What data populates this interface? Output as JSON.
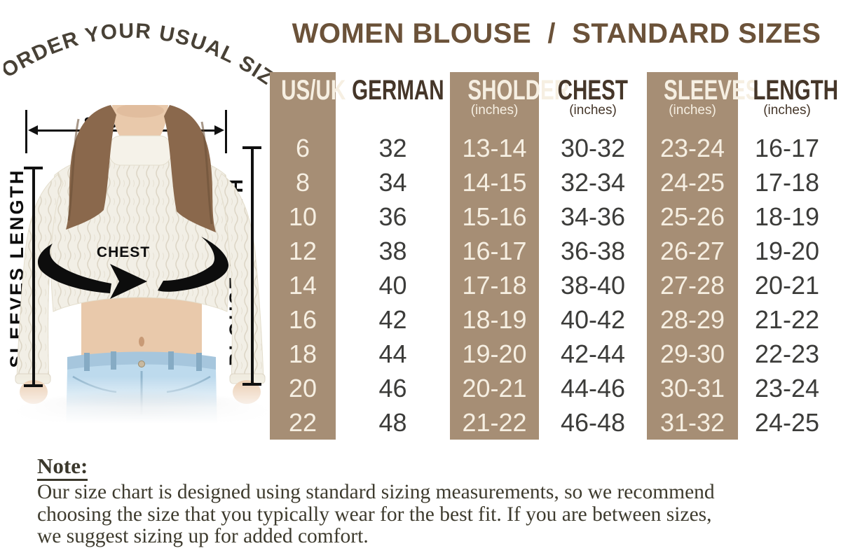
{
  "badge": {
    "arc_text": "ORDER YOUR USUAL SIZE"
  },
  "title": {
    "text": "WOMEN BLOUSE  /  STANDARD SIZES",
    "color": "#6b5239"
  },
  "figure": {
    "labels": {
      "shoulder": "SHOLDER",
      "sleeves_length": "SLEEVES LENGTH",
      "blouse_length": "BLOUSE LENGTH",
      "chest": "CHEST"
    }
  },
  "size_table": {
    "accent_bg": "#a68e75",
    "accent_text": "#f6efe2",
    "columns": [
      {
        "key": "us_uk",
        "label": "US/UK",
        "sub": "",
        "accent": true
      },
      {
        "key": "german",
        "label": "GERMAN",
        "sub": "",
        "accent": false
      },
      {
        "key": "shoulder",
        "label": "SHOLDER",
        "sub": "(inches)",
        "accent": true
      },
      {
        "key": "chest",
        "label": "CHEST",
        "sub": "(inches)",
        "accent": false
      },
      {
        "key": "sleeves",
        "label": "SLEEVES",
        "sub": "(inches)",
        "accent": true
      },
      {
        "key": "length",
        "label": "LENGTH",
        "sub": "(inches)",
        "accent": false
      }
    ],
    "rows": [
      [
        "6",
        "32",
        "13-14",
        "30-32",
        "23-24",
        "16-17"
      ],
      [
        "8",
        "34",
        "14-15",
        "32-34",
        "24-25",
        "17-18"
      ],
      [
        "10",
        "36",
        "15-16",
        "34-36",
        "25-26",
        "18-19"
      ],
      [
        "12",
        "38",
        "16-17",
        "36-38",
        "26-27",
        "19-20"
      ],
      [
        "14",
        "40",
        "17-18",
        "38-40",
        "27-28",
        "20-21"
      ],
      [
        "16",
        "42",
        "18-19",
        "40-42",
        "28-29",
        "21-22"
      ],
      [
        "18",
        "44",
        "19-20",
        "42-44",
        "29-30",
        "22-23"
      ],
      [
        "20",
        "46",
        "20-21",
        "44-46",
        "30-31",
        "23-24"
      ],
      [
        "22",
        "48",
        "21-22",
        "46-48",
        "31-32",
        "24-25"
      ]
    ]
  },
  "note": {
    "heading": "Note:",
    "lines": [
      "Our size chart is designed using standard sizing measurements, so we recommend",
      "choosing the size that you typically wear for the best fit. If you are between sizes,",
      "we suggest sizing up for added comfort."
    ]
  }
}
